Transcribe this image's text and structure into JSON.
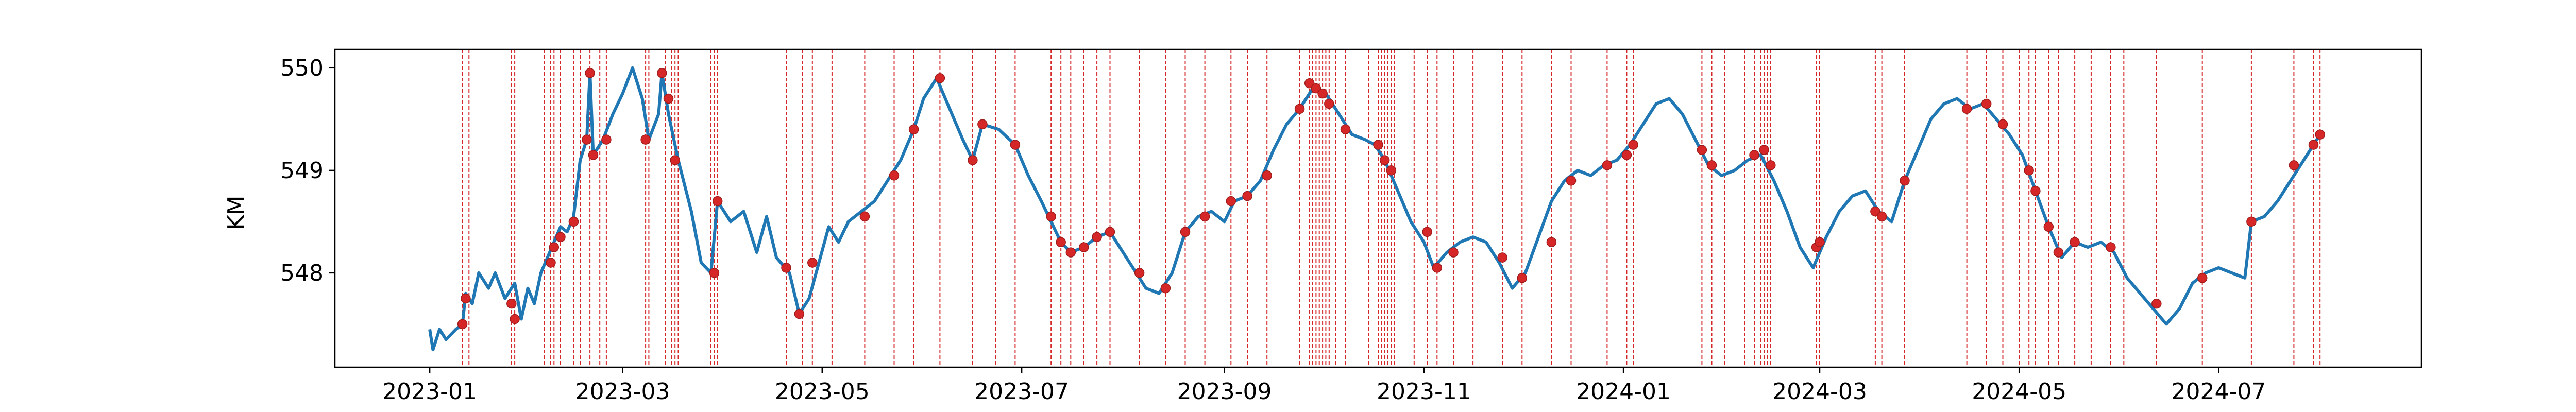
{
  "chart_data": {
    "type": "line",
    "title": "",
    "xlabel": "",
    "ylabel": "KM",
    "x_range": [
      "2022-12-03",
      "2024-09-01"
    ],
    "ylim": [
      547.08,
      550.18
    ],
    "grid": false,
    "x_ticks": [
      "2023-01-01",
      "2023-03-01",
      "2023-05-01",
      "2023-07-01",
      "2023-09-01",
      "2023-11-01",
      "2024-01-01",
      "2024-03-01",
      "2024-05-01",
      "2024-07-01"
    ],
    "x_tick_labels": [
      "2023-01",
      "2023-03",
      "2023-05",
      "2023-07",
      "2023-09",
      "2023-11",
      "2024-01",
      "2024-03",
      "2024-05",
      "2024-07"
    ],
    "y_ticks": [
      548,
      549,
      550
    ],
    "y_tick_labels": [
      "548",
      "549",
      "550"
    ],
    "colors": {
      "line": "#1f77b4",
      "event_line": "#d62728",
      "marker": "#d62728"
    },
    "series": [
      {
        "values": [
          [
            "2023-01-01",
            547.45
          ],
          [
            "2023-01-02",
            547.25
          ],
          [
            "2023-01-04",
            547.45
          ],
          [
            "2023-01-06",
            547.35
          ],
          [
            "2023-01-09",
            547.45
          ],
          [
            "2023-01-11",
            547.5
          ],
          [
            "2023-01-12",
            547.8
          ],
          [
            "2023-01-14",
            547.7
          ],
          [
            "2023-01-16",
            548.0
          ],
          [
            "2023-01-19",
            547.85
          ],
          [
            "2023-01-21",
            548.0
          ],
          [
            "2023-01-24",
            547.75
          ],
          [
            "2023-01-27",
            547.9
          ],
          [
            "2023-01-29",
            547.55
          ],
          [
            "2023-01-31",
            547.85
          ],
          [
            "2023-02-02",
            547.7
          ],
          [
            "2023-02-04",
            548.0
          ],
          [
            "2023-02-06",
            548.15
          ],
          [
            "2023-02-08",
            548.3
          ],
          [
            "2023-02-10",
            548.45
          ],
          [
            "2023-02-12",
            548.4
          ],
          [
            "2023-02-14",
            548.55
          ],
          [
            "2023-02-16",
            549.1
          ],
          [
            "2023-02-18",
            549.3
          ],
          [
            "2023-02-19",
            549.95
          ],
          [
            "2023-02-20",
            549.15
          ],
          [
            "2023-02-23",
            549.3
          ],
          [
            "2023-02-26",
            549.55
          ],
          [
            "2023-03-01",
            549.75
          ],
          [
            "2023-03-04",
            550.0
          ],
          [
            "2023-03-07",
            549.7
          ],
          [
            "2023-03-09",
            549.3
          ],
          [
            "2023-03-12",
            549.55
          ],
          [
            "2023-03-13",
            549.95
          ],
          [
            "2023-03-15",
            549.55
          ],
          [
            "2023-03-18",
            549.1
          ],
          [
            "2023-03-22",
            548.6
          ],
          [
            "2023-03-25",
            548.1
          ],
          [
            "2023-03-28",
            548.0
          ],
          [
            "2023-03-30",
            548.7
          ],
          [
            "2023-04-03",
            548.5
          ],
          [
            "2023-04-07",
            548.6
          ],
          [
            "2023-04-11",
            548.2
          ],
          [
            "2023-04-14",
            548.55
          ],
          [
            "2023-04-17",
            548.15
          ],
          [
            "2023-04-21",
            548.0
          ],
          [
            "2023-04-24",
            547.6
          ],
          [
            "2023-04-27",
            547.75
          ],
          [
            "2023-04-30",
            548.1
          ],
          [
            "2023-05-03",
            548.45
          ],
          [
            "2023-05-06",
            548.3
          ],
          [
            "2023-05-09",
            548.5
          ],
          [
            "2023-05-13",
            548.6
          ],
          [
            "2023-05-17",
            548.7
          ],
          [
            "2023-05-21",
            548.9
          ],
          [
            "2023-05-25",
            549.1
          ],
          [
            "2023-05-29",
            549.4
          ],
          [
            "2023-06-01",
            549.7
          ],
          [
            "2023-06-05",
            549.9
          ],
          [
            "2023-06-09",
            549.6
          ],
          [
            "2023-06-13",
            549.3
          ],
          [
            "2023-06-16",
            549.1
          ],
          [
            "2023-06-19",
            549.45
          ],
          [
            "2023-06-24",
            549.4
          ],
          [
            "2023-06-29",
            549.25
          ],
          [
            "2023-07-03",
            548.95
          ],
          [
            "2023-07-07",
            548.7
          ],
          [
            "2023-07-10",
            548.5
          ],
          [
            "2023-07-13",
            548.3
          ],
          [
            "2023-07-16",
            548.2
          ],
          [
            "2023-07-20",
            548.25
          ],
          [
            "2023-07-24",
            548.35
          ],
          [
            "2023-07-28",
            548.4
          ],
          [
            "2023-08-01",
            548.2
          ],
          [
            "2023-08-05",
            548.0
          ],
          [
            "2023-08-08",
            547.85
          ],
          [
            "2023-08-12",
            547.8
          ],
          [
            "2023-08-16",
            548.0
          ],
          [
            "2023-08-20",
            548.4
          ],
          [
            "2023-08-24",
            548.55
          ],
          [
            "2023-08-28",
            548.6
          ],
          [
            "2023-09-01",
            548.5
          ],
          [
            "2023-09-04",
            548.7
          ],
          [
            "2023-09-08",
            548.75
          ],
          [
            "2023-09-12",
            548.9
          ],
          [
            "2023-09-16",
            549.2
          ],
          [
            "2023-09-20",
            549.45
          ],
          [
            "2023-09-24",
            549.6
          ],
          [
            "2023-09-28",
            549.8
          ],
          [
            "2023-10-02",
            549.75
          ],
          [
            "2023-10-06",
            549.55
          ],
          [
            "2023-10-10",
            549.35
          ],
          [
            "2023-10-14",
            549.3
          ],
          [
            "2023-10-17",
            549.25
          ],
          [
            "2023-10-20",
            549.1
          ],
          [
            "2023-10-24",
            548.8
          ],
          [
            "2023-10-28",
            548.5
          ],
          [
            "2023-11-01",
            548.3
          ],
          [
            "2023-11-04",
            548.05
          ],
          [
            "2023-11-08",
            548.2
          ],
          [
            "2023-11-12",
            548.3
          ],
          [
            "2023-11-16",
            548.35
          ],
          [
            "2023-11-20",
            548.3
          ],
          [
            "2023-11-24",
            548.1
          ],
          [
            "2023-11-28",
            547.85
          ],
          [
            "2023-12-02",
            548.0
          ],
          [
            "2023-12-06",
            548.35
          ],
          [
            "2023-12-10",
            548.7
          ],
          [
            "2023-12-14",
            548.9
          ],
          [
            "2023-12-18",
            549.0
          ],
          [
            "2023-12-22",
            548.95
          ],
          [
            "2023-12-26",
            549.05
          ],
          [
            "2023-12-30",
            549.1
          ],
          [
            "2024-01-03",
            549.25
          ],
          [
            "2024-01-07",
            549.45
          ],
          [
            "2024-01-11",
            549.65
          ],
          [
            "2024-01-15",
            549.7
          ],
          [
            "2024-01-19",
            549.55
          ],
          [
            "2024-01-23",
            549.3
          ],
          [
            "2024-01-27",
            549.05
          ],
          [
            "2024-01-31",
            548.95
          ],
          [
            "2024-02-04",
            549.0
          ],
          [
            "2024-02-08",
            549.1
          ],
          [
            "2024-02-12",
            549.15
          ],
          [
            "2024-02-16",
            548.9
          ],
          [
            "2024-02-20",
            548.6
          ],
          [
            "2024-02-24",
            548.25
          ],
          [
            "2024-02-28",
            548.05
          ],
          [
            "2024-03-03",
            548.35
          ],
          [
            "2024-03-07",
            548.6
          ],
          [
            "2024-03-11",
            548.75
          ],
          [
            "2024-03-15",
            548.8
          ],
          [
            "2024-03-19",
            548.6
          ],
          [
            "2024-03-23",
            548.5
          ],
          [
            "2024-03-27",
            548.9
          ],
          [
            "2024-03-31",
            549.2
          ],
          [
            "2024-04-04",
            549.5
          ],
          [
            "2024-04-08",
            549.65
          ],
          [
            "2024-04-12",
            549.7
          ],
          [
            "2024-04-16",
            549.6
          ],
          [
            "2024-04-20",
            549.65
          ],
          [
            "2024-04-24",
            549.5
          ],
          [
            "2024-04-28",
            549.35
          ],
          [
            "2024-05-02",
            549.15
          ],
          [
            "2024-05-06",
            548.8
          ],
          [
            "2024-05-10",
            548.45
          ],
          [
            "2024-05-14",
            548.15
          ],
          [
            "2024-05-18",
            548.3
          ],
          [
            "2024-05-22",
            548.25
          ],
          [
            "2024-05-26",
            548.3
          ],
          [
            "2024-05-30",
            548.2
          ],
          [
            "2024-06-03",
            547.95
          ],
          [
            "2024-06-07",
            547.8
          ],
          [
            "2024-06-11",
            547.65
          ],
          [
            "2024-06-15",
            547.5
          ],
          [
            "2024-06-19",
            547.65
          ],
          [
            "2024-06-23",
            547.9
          ],
          [
            "2024-06-27",
            548.0
          ],
          [
            "2024-07-01",
            548.05
          ],
          [
            "2024-07-05",
            548.0
          ],
          [
            "2024-07-09",
            547.95
          ],
          [
            "2024-07-11",
            548.5
          ],
          [
            "2024-07-15",
            548.55
          ],
          [
            "2024-07-19",
            548.7
          ],
          [
            "2024-07-23",
            548.9
          ],
          [
            "2024-07-27",
            549.1
          ],
          [
            "2024-07-30",
            549.25
          ],
          [
            "2024-08-01",
            549.35
          ]
        ]
      }
    ],
    "event_dates": [
      "2023-01-11",
      "2023-01-13",
      "2023-01-26",
      "2023-01-27",
      "2023-02-05",
      "2023-02-07",
      "2023-02-08",
      "2023-02-10",
      "2023-02-14",
      "2023-02-16",
      "2023-02-19",
      "2023-02-22",
      "2023-02-24",
      "2023-03-08",
      "2023-03-09",
      "2023-03-14",
      "2023-03-16",
      "2023-03-17",
      "2023-03-18",
      "2023-03-28",
      "2023-03-29",
      "2023-03-30",
      "2023-04-20",
      "2023-04-25",
      "2023-04-28",
      "2023-05-04",
      "2023-05-14",
      "2023-05-23",
      "2023-05-29",
      "2023-06-06",
      "2023-06-16",
      "2023-06-23",
      "2023-06-29",
      "2023-07-10",
      "2023-07-13",
      "2023-07-16",
      "2023-07-20",
      "2023-07-24",
      "2023-07-28",
      "2023-08-06",
      "2023-08-14",
      "2023-08-20",
      "2023-08-26",
      "2023-09-03",
      "2023-09-08",
      "2023-09-14",
      "2023-09-24",
      "2023-09-27",
      "2023-09-28",
      "2023-09-29",
      "2023-09-30",
      "2023-10-01",
      "2023-10-02",
      "2023-10-03",
      "2023-10-05",
      "2023-10-08",
      "2023-10-15",
      "2023-10-18",
      "2023-10-19",
      "2023-10-20",
      "2023-10-21",
      "2023-10-22",
      "2023-10-23",
      "2023-10-29",
      "2023-11-02",
      "2023-11-05",
      "2023-11-10",
      "2023-11-16",
      "2023-11-25",
      "2023-12-01",
      "2023-12-10",
      "2023-12-16",
      "2023-12-27",
      "2024-01-02",
      "2024-01-04",
      "2024-01-25",
      "2024-01-28",
      "2024-02-01",
      "2024-02-07",
      "2024-02-10",
      "2024-02-12",
      "2024-02-13",
      "2024-02-14",
      "2024-02-15",
      "2024-02-29",
      "2024-03-01",
      "2024-03-18",
      "2024-03-20",
      "2024-03-27",
      "2024-04-15",
      "2024-04-21",
      "2024-04-26",
      "2024-05-01",
      "2024-05-04",
      "2024-05-06",
      "2024-05-10",
      "2024-05-13",
      "2024-05-18",
      "2024-05-23",
      "2024-05-29",
      "2024-06-02",
      "2024-06-12",
      "2024-06-26",
      "2024-07-11",
      "2024-07-24",
      "2024-07-30",
      "2024-08-01"
    ],
    "event_markers": [
      [
        "2023-01-11",
        547.5
      ],
      [
        "2023-01-12",
        547.75
      ],
      [
        "2023-01-26",
        547.7
      ],
      [
        "2023-01-27",
        547.55
      ],
      [
        "2023-02-07",
        548.1
      ],
      [
        "2023-02-08",
        548.25
      ],
      [
        "2023-02-10",
        548.35
      ],
      [
        "2023-02-14",
        548.5
      ],
      [
        "2023-02-18",
        549.3
      ],
      [
        "2023-02-19",
        549.95
      ],
      [
        "2023-02-20",
        549.15
      ],
      [
        "2023-02-24",
        549.3
      ],
      [
        "2023-03-08",
        549.3
      ],
      [
        "2023-03-13",
        549.95
      ],
      [
        "2023-03-15",
        549.7
      ],
      [
        "2023-03-17",
        549.1
      ],
      [
        "2023-03-29",
        548.0
      ],
      [
        "2023-03-30",
        548.7
      ],
      [
        "2023-04-20",
        548.05
      ],
      [
        "2023-04-24",
        547.6
      ],
      [
        "2023-04-28",
        548.1
      ],
      [
        "2023-05-14",
        548.55
      ],
      [
        "2023-05-23",
        548.95
      ],
      [
        "2023-05-29",
        549.4
      ],
      [
        "2023-06-06",
        549.9
      ],
      [
        "2023-06-16",
        549.1
      ],
      [
        "2023-06-19",
        549.45
      ],
      [
        "2023-06-29",
        549.25
      ],
      [
        "2023-07-10",
        548.55
      ],
      [
        "2023-07-13",
        548.3
      ],
      [
        "2023-07-16",
        548.2
      ],
      [
        "2023-07-20",
        548.25
      ],
      [
        "2023-07-24",
        548.35
      ],
      [
        "2023-07-28",
        548.4
      ],
      [
        "2023-08-06",
        548.0
      ],
      [
        "2023-08-14",
        547.85
      ],
      [
        "2023-08-20",
        548.4
      ],
      [
        "2023-08-26",
        548.55
      ],
      [
        "2023-09-03",
        548.7
      ],
      [
        "2023-09-08",
        548.75
      ],
      [
        "2023-09-14",
        548.95
      ],
      [
        "2023-09-24",
        549.6
      ],
      [
        "2023-09-27",
        549.85
      ],
      [
        "2023-09-29",
        549.8
      ],
      [
        "2023-10-01",
        549.75
      ],
      [
        "2023-10-03",
        549.65
      ],
      [
        "2023-10-08",
        549.4
      ],
      [
        "2023-10-18",
        549.25
      ],
      [
        "2023-10-20",
        549.1
      ],
      [
        "2023-10-22",
        549.0
      ],
      [
        "2023-11-02",
        548.4
      ],
      [
        "2023-11-05",
        548.05
      ],
      [
        "2023-11-10",
        548.2
      ],
      [
        "2023-11-25",
        548.15
      ],
      [
        "2023-12-01",
        547.95
      ],
      [
        "2023-12-10",
        548.3
      ],
      [
        "2023-12-16",
        548.9
      ],
      [
        "2023-12-27",
        549.05
      ],
      [
        "2024-01-02",
        549.15
      ],
      [
        "2024-01-04",
        549.25
      ],
      [
        "2024-01-25",
        549.2
      ],
      [
        "2024-01-28",
        549.05
      ],
      [
        "2024-02-10",
        549.15
      ],
      [
        "2024-02-13",
        549.2
      ],
      [
        "2024-02-15",
        549.05
      ],
      [
        "2024-02-29",
        548.25
      ],
      [
        "2024-03-01",
        548.3
      ],
      [
        "2024-03-18",
        548.6
      ],
      [
        "2024-03-20",
        548.55
      ],
      [
        "2024-03-27",
        548.9
      ],
      [
        "2024-04-15",
        549.6
      ],
      [
        "2024-04-21",
        549.65
      ],
      [
        "2024-04-26",
        549.45
      ],
      [
        "2024-05-04",
        549.0
      ],
      [
        "2024-05-06",
        548.8
      ],
      [
        "2024-05-10",
        548.45
      ],
      [
        "2024-05-13",
        548.2
      ],
      [
        "2024-05-18",
        548.3
      ],
      [
        "2024-05-29",
        548.25
      ],
      [
        "2024-06-12",
        547.7
      ],
      [
        "2024-06-26",
        547.95
      ],
      [
        "2024-07-11",
        548.5
      ],
      [
        "2024-07-24",
        549.05
      ],
      [
        "2024-07-30",
        549.25
      ],
      [
        "2024-08-01",
        549.35
      ]
    ]
  }
}
